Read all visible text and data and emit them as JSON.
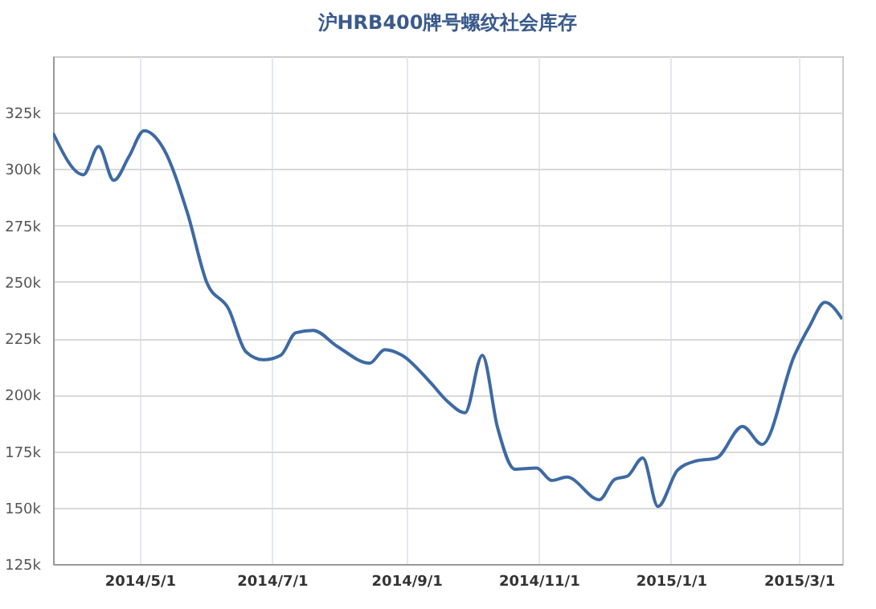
{
  "chart_data": {
    "type": "line",
    "title": "沪HRB400牌号螺纹社会库存",
    "x": [
      "2014-03-22",
      "2014-04-05",
      "2014-04-12",
      "2014-04-19",
      "2014-04-26",
      "2014-05-03",
      "2014-05-12",
      "2014-05-23",
      "2014-06-01",
      "2014-06-11",
      "2014-06-19",
      "2014-06-27",
      "2014-07-05",
      "2014-07-12",
      "2014-07-20",
      "2014-07-31",
      "2014-08-15",
      "2014-08-22",
      "2014-08-30",
      "2014-09-12",
      "2014-09-20",
      "2014-09-28",
      "2014-10-06",
      "2014-10-13",
      "2014-10-21",
      "2014-10-31",
      "2014-11-07",
      "2014-11-14",
      "2014-11-29",
      "2014-12-06",
      "2014-12-12",
      "2014-12-19",
      "2014-12-26",
      "2015-01-04",
      "2015-01-12",
      "2015-01-22",
      "2015-02-03",
      "2015-02-12",
      "2015-02-27",
      "2015-03-06",
      "2015-03-13",
      "2015-03-21"
    ],
    "series": [
      {
        "color": "#3e6aa3",
        "values": [
          316000,
          297500,
          310000,
          295000,
          305500,
          317000,
          309000,
          280500,
          249500,
          238000,
          219000,
          215500,
          217500,
          227500,
          228500,
          221500,
          214000,
          220000,
          217500,
          205500,
          197000,
          192000,
          217500,
          185500,
          167000,
          167500,
          162000,
          163500,
          153500,
          162500,
          164000,
          172000,
          150500,
          166500,
          170500,
          172000,
          186000,
          178000,
          217500,
          230500,
          241000,
          233500
        ]
      }
    ],
    "xlim": [
      "2014-03-22",
      "2015-03-21"
    ],
    "xticks": [
      {
        "value": "2014-05-01",
        "label": "2014/5/1"
      },
      {
        "value": "2014-07-01",
        "label": "2014/7/1"
      },
      {
        "value": "2014-09-01",
        "label": "2014/9/1"
      },
      {
        "value": "2014-11-01",
        "label": "2014/11/1"
      },
      {
        "value": "2015-01-01",
        "label": "2015/1/1"
      },
      {
        "value": "2015-03-01",
        "label": "2015/3/1"
      }
    ],
    "ylim": [
      125000,
      350000
    ],
    "yticks": [
      {
        "value": 125000,
        "label": "125k"
      },
      {
        "value": 150000,
        "label": "150k"
      },
      {
        "value": 175000,
        "label": "175k"
      },
      {
        "value": 200000,
        "label": "200k"
      },
      {
        "value": 225000,
        "label": "225k"
      },
      {
        "value": 250000,
        "label": "250k"
      },
      {
        "value": 275000,
        "label": "275k"
      },
      {
        "value": 300000,
        "label": "300k"
      },
      {
        "value": 325000,
        "label": "325k"
      }
    ],
    "grid": true,
    "marker": "none",
    "line_style": "solid"
  }
}
